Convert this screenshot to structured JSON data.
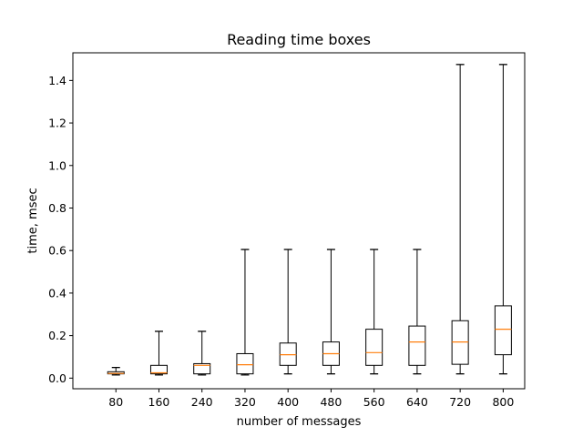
{
  "chart_data": {
    "type": "box",
    "title": "Reading time boxes",
    "xlabel": "number of messages",
    "ylabel": "time, msec",
    "ylim": [
      -0.05,
      1.53
    ],
    "yticks": [
      "0.0",
      "0.2",
      "0.4",
      "0.6",
      "0.8",
      "1.0",
      "1.2",
      "1.4"
    ],
    "categories": [
      "80",
      "160",
      "240",
      "320",
      "400",
      "480",
      "560",
      "640",
      "720",
      "800"
    ],
    "boxes": [
      {
        "whislo": 0.015,
        "q1": 0.02,
        "med": 0.022,
        "q3": 0.03,
        "whishi": 0.05
      },
      {
        "whislo": 0.015,
        "q1": 0.02,
        "med": 0.025,
        "q3": 0.06,
        "whishi": 0.22
      },
      {
        "whislo": 0.015,
        "q1": 0.02,
        "med": 0.06,
        "q3": 0.068,
        "whishi": 0.22
      },
      {
        "whislo": 0.015,
        "q1": 0.02,
        "med": 0.063,
        "q3": 0.115,
        "whishi": 0.605
      },
      {
        "whislo": 0.02,
        "q1": 0.06,
        "med": 0.11,
        "q3": 0.165,
        "whishi": 0.605
      },
      {
        "whislo": 0.02,
        "q1": 0.06,
        "med": 0.115,
        "q3": 0.17,
        "whishi": 0.605
      },
      {
        "whislo": 0.02,
        "q1": 0.06,
        "med": 0.12,
        "q3": 0.23,
        "whishi": 0.605
      },
      {
        "whislo": 0.02,
        "q1": 0.06,
        "med": 0.17,
        "q3": 0.245,
        "whishi": 0.605
      },
      {
        "whislo": 0.02,
        "q1": 0.065,
        "med": 0.17,
        "q3": 0.27,
        "whishi": 1.475
      },
      {
        "whislo": 0.02,
        "q1": 0.11,
        "med": 0.23,
        "q3": 0.34,
        "whishi": 1.475
      }
    ],
    "colors": {
      "box": "#000000",
      "median": "#ff7f0e"
    },
    "grid": false,
    "legend": "none"
  }
}
